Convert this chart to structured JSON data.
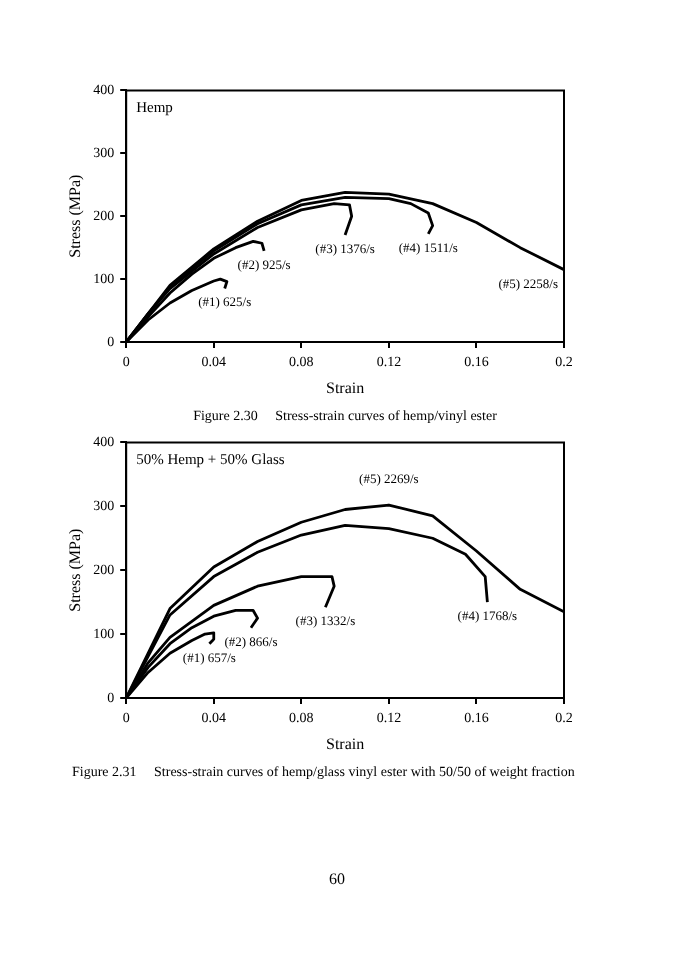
{
  "chart_data": [
    {
      "type": "line",
      "title": "Hemp",
      "xlabel": "Strain",
      "ylabel": "Stress (MPa)",
      "xlim": [
        0,
        0.2
      ],
      "ylim": [
        0,
        400
      ],
      "xticks": [
        0,
        0.04,
        0.08,
        0.12,
        0.16,
        0.2
      ],
      "yticks": [
        0,
        100,
        200,
        300,
        400
      ],
      "legend": false,
      "series": [
        {
          "name": "(#1) 625/s",
          "color": "#000000",
          "x": [
            0,
            0.01,
            0.02,
            0.03,
            0.04,
            0.043,
            0.046,
            0.045
          ],
          "values": [
            0,
            35,
            62,
            82,
            97,
            100,
            96,
            85
          ]
        },
        {
          "name": "(#2) 925/s",
          "color": "#000000",
          "x": [
            0,
            0.01,
            0.02,
            0.03,
            0.04,
            0.05,
            0.058,
            0.062,
            0.063
          ],
          "values": [
            0,
            40,
            78,
            108,
            133,
            150,
            160,
            157,
            145
          ]
        },
        {
          "name": "(#3) 1376/s",
          "color": "#000000",
          "x": [
            0,
            0.01,
            0.02,
            0.04,
            0.06,
            0.08,
            0.095,
            0.102,
            0.103,
            0.1
          ],
          "values": [
            0,
            45,
            85,
            140,
            182,
            210,
            220,
            218,
            200,
            170
          ]
        },
        {
          "name": "(#4) 1511/s",
          "color": "#000000",
          "x": [
            0,
            0.02,
            0.04,
            0.06,
            0.08,
            0.1,
            0.12,
            0.13,
            0.138,
            0.14,
            0.138
          ],
          "values": [
            0,
            88,
            145,
            188,
            218,
            230,
            228,
            220,
            205,
            185,
            172
          ]
        },
        {
          "name": "(#5) 2258/s",
          "color": "#000000",
          "x": [
            0,
            0.02,
            0.04,
            0.06,
            0.08,
            0.1,
            0.12,
            0.14,
            0.16,
            0.18,
            0.2
          ],
          "values": [
            0,
            90,
            148,
            192,
            225,
            238,
            235,
            220,
            190,
            150,
            115
          ]
        }
      ],
      "annotations": [
        "Figure 2.30     Stress-strain curves of hemp/vinyl ester"
      ]
    },
    {
      "type": "line",
      "title": "50% Hemp + 50% Glass",
      "xlabel": "Strain",
      "ylabel": "Stress (MPa)",
      "xlim": [
        0,
        0.2
      ],
      "ylim": [
        0,
        400
      ],
      "xticks": [
        0,
        0.04,
        0.08,
        0.12,
        0.16,
        0.2
      ],
      "yticks": [
        0,
        100,
        200,
        300,
        400
      ],
      "legend": false,
      "series": [
        {
          "name": "(#1) 657/s",
          "color": "#000000",
          "x": [
            0,
            0.01,
            0.02,
            0.03,
            0.036,
            0.04,
            0.04,
            0.038
          ],
          "values": [
            0,
            40,
            70,
            90,
            100,
            102,
            92,
            85
          ]
        },
        {
          "name": "(#2) 866/s",
          "color": "#000000",
          "x": [
            0,
            0.01,
            0.02,
            0.03,
            0.04,
            0.05,
            0.058,
            0.06,
            0.057
          ],
          "values": [
            0,
            48,
            85,
            110,
            128,
            137,
            137,
            125,
            110
          ]
        },
        {
          "name": "(#3) 1332/s",
          "color": "#000000",
          "x": [
            0,
            0.01,
            0.02,
            0.04,
            0.06,
            0.08,
            0.094,
            0.095,
            0.091
          ],
          "values": [
            0,
            55,
            95,
            145,
            175,
            190,
            190,
            175,
            142
          ]
        },
        {
          "name": "(#4) 1768/s",
          "color": "#000000",
          "x": [
            0,
            0.02,
            0.04,
            0.06,
            0.08,
            0.1,
            0.12,
            0.14,
            0.155,
            0.164,
            0.165
          ],
          "values": [
            0,
            130,
            190,
            228,
            255,
            270,
            265,
            250,
            225,
            190,
            150
          ]
        },
        {
          "name": "(#5) 2269/s",
          "color": "#000000",
          "x": [
            0,
            0.02,
            0.04,
            0.06,
            0.08,
            0.1,
            0.12,
            0.14,
            0.16,
            0.18,
            0.2
          ],
          "values": [
            0,
            140,
            205,
            245,
            275,
            295,
            302,
            285,
            230,
            170,
            135
          ]
        }
      ],
      "annotations": [
        "Figure 2.31     Stress-strain curves of hemp/glass vinyl ester with 50/50 of weight fraction",
        "60"
      ]
    }
  ]
}
